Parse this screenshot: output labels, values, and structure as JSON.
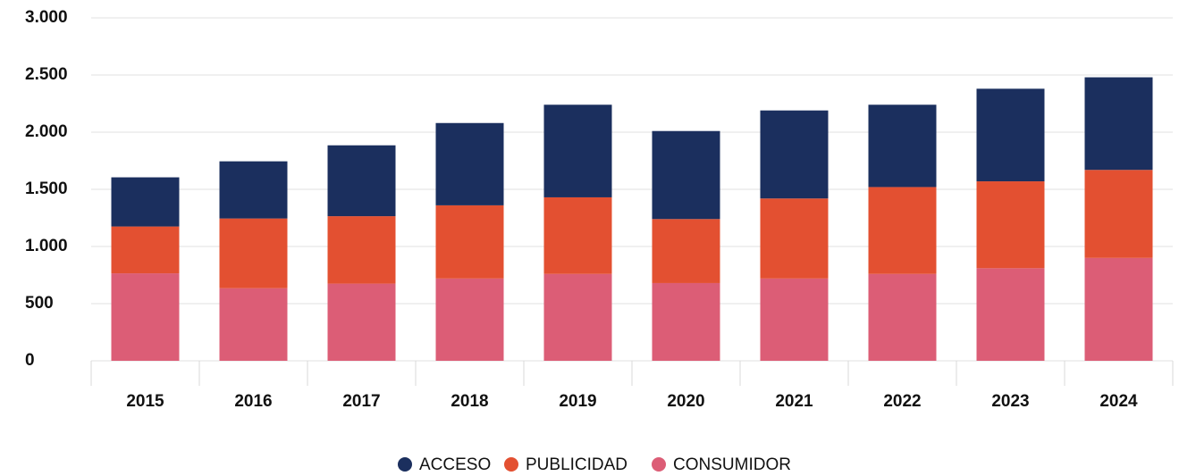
{
  "chart_data": {
    "type": "stacked_bar",
    "categories": [
      "2015",
      "2016",
      "2017",
      "2018",
      "2019",
      "2020",
      "2021",
      "2022",
      "2023",
      "2024"
    ],
    "series": [
      {
        "name": "ACCESO",
        "color": "#1b2f5e",
        "values": [
          430,
          500,
          620,
          720,
          810,
          770,
          770,
          720,
          810,
          810
        ]
      },
      {
        "name": "PUBLICIDAD",
        "color": "#e35031",
        "values": [
          410,
          610,
          590,
          640,
          670,
          560,
          700,
          760,
          760,
          770
        ]
      },
      {
        "name": "CONSUMIDOR",
        "color": "#dc5d76",
        "values": [
          765,
          635,
          675,
          720,
          760,
          680,
          720,
          760,
          810,
          900
        ]
      }
    ],
    "ylim": [
      0,
      3000
    ],
    "yticks": [
      0,
      500,
      {
        "value": 1000,
        "label": "1.000"
      },
      {
        "value": 1500,
        "label": "1.500"
      },
      {
        "value": 2000,
        "label": "2.000"
      },
      {
        "value": 2500,
        "label": "2.500"
      },
      {
        "value": 3000,
        "label": "3.000"
      }
    ],
    "grid": true,
    "legend": "bottom"
  }
}
